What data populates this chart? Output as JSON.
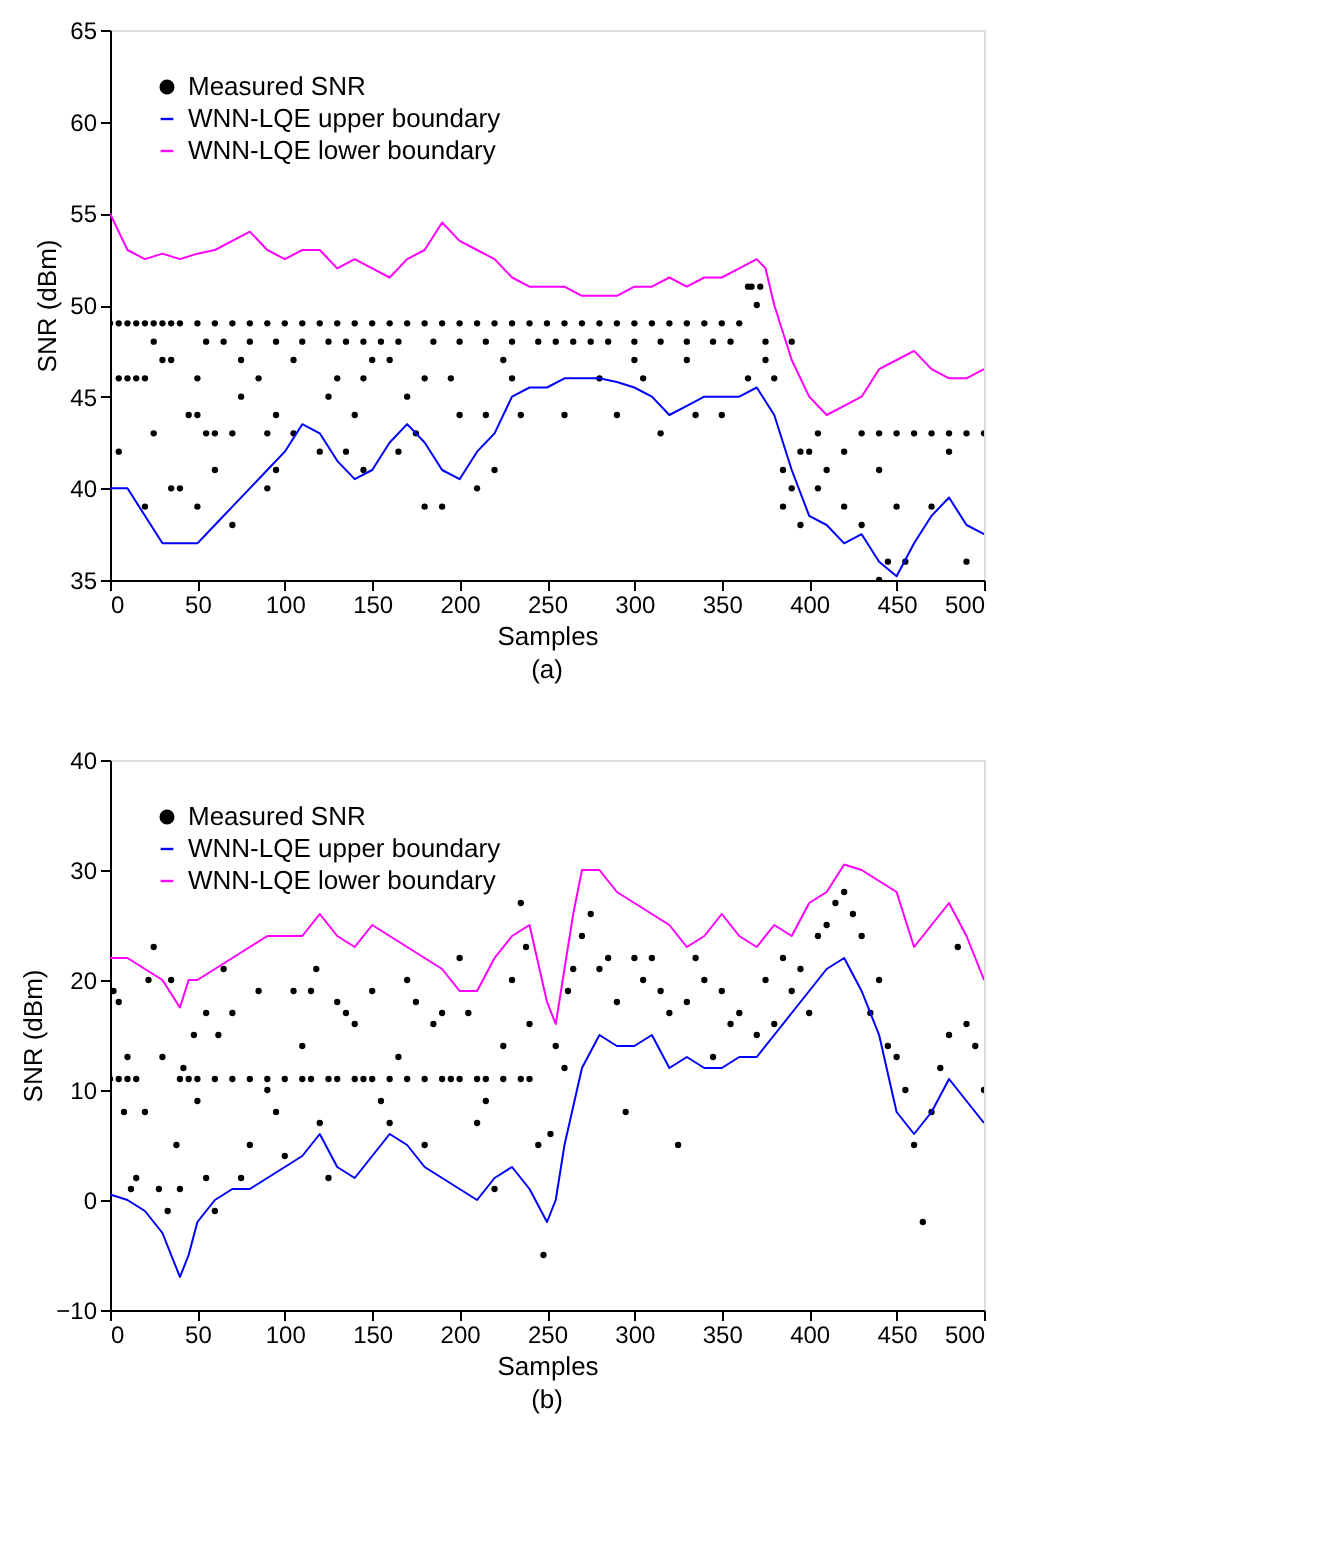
{
  "chart_data": [
    {
      "type": "line",
      "xlabel": "Samples",
      "ylabel": "SNR (dBm)",
      "annotations": [
        "(a)"
      ],
      "xlim": [
        0,
        500
      ],
      "xticks": [
        0,
        50,
        100,
        150,
        200,
        250,
        300,
        350,
        400,
        450,
        500
      ],
      "ylim": [
        35,
        65
      ],
      "yticks": [
        35,
        40,
        45,
        50,
        55,
        60,
        65
      ],
      "grid": false,
      "legend": "top left",
      "series": [
        {
          "name": "Measured SNR",
          "type": "scatter",
          "marker": "circle",
          "color": "#000000",
          "x": [
            0,
            5,
            10,
            15,
            20,
            25,
            30,
            35,
            40,
            50,
            60,
            70,
            80,
            90,
            100,
            110,
            120,
            130,
            140,
            150,
            160,
            170,
            180,
            190,
            200,
            210,
            220,
            230,
            240,
            250,
            260,
            270,
            280,
            290,
            300,
            310,
            320,
            330,
            340,
            350,
            360,
            365,
            367,
            370,
            372,
            25,
            55,
            65,
            80,
            95,
            110,
            125,
            135,
            145,
            155,
            165,
            185,
            200,
            215,
            230,
            245,
            255,
            265,
            275,
            285,
            300,
            315,
            330,
            345,
            355,
            375,
            390,
            30,
            35,
            75,
            105,
            150,
            160,
            225,
            300,
            330,
            375,
            5,
            10,
            15,
            20,
            50,
            85,
            130,
            145,
            180,
            195,
            230,
            280,
            305,
            365,
            380,
            75,
            125,
            170,
            45,
            50,
            95,
            140,
            200,
            215,
            235,
            260,
            290,
            335,
            350,
            25,
            55,
            60,
            70,
            90,
            105,
            175,
            315,
            405,
            430,
            440,
            450,
            460,
            470,
            480,
            490,
            500,
            5,
            120,
            135,
            165,
            395,
            400,
            420,
            480,
            60,
            95,
            145,
            220,
            385,
            410,
            440,
            35,
            40,
            90,
            210,
            390,
            405,
            20,
            50,
            180,
            190,
            385,
            420,
            450,
            470,
            70,
            395,
            430,
            445,
            455,
            490,
            440
          ],
          "values": [
            49,
            49,
            49,
            49,
            49,
            49,
            49,
            49,
            49,
            49,
            49,
            49,
            49,
            49,
            49,
            49,
            49,
            49,
            49,
            49,
            49,
            49,
            49,
            49,
            49,
            49,
            49,
            49,
            49,
            49,
            49,
            49,
            49,
            49,
            49,
            49,
            49,
            49,
            49,
            49,
            49,
            51,
            51,
            50,
            51,
            48,
            48,
            48,
            48,
            48,
            48,
            48,
            48,
            48,
            48,
            48,
            48,
            48,
            48,
            48,
            48,
            48,
            48,
            48,
            48,
            48,
            48,
            48,
            48,
            48,
            48,
            48,
            47,
            47,
            47,
            47,
            47,
            47,
            47,
            47,
            47,
            47,
            46,
            46,
            46,
            46,
            46,
            46,
            46,
            46,
            46,
            46,
            46,
            46,
            46,
            46,
            46,
            45,
            45,
            45,
            44,
            44,
            44,
            44,
            44,
            44,
            44,
            44,
            44,
            44,
            44,
            43,
            43,
            43,
            43,
            43,
            43,
            43,
            43,
            43,
            43,
            43,
            43,
            43,
            43,
            43,
            43,
            43,
            42,
            42,
            42,
            42,
            42,
            42,
            42,
            42,
            41,
            41,
            41,
            41,
            41,
            41,
            41,
            40,
            40,
            40,
            40,
            40,
            40,
            39,
            39,
            39,
            39,
            39,
            39,
            39,
            39,
            38,
            38,
            38,
            36,
            36,
            36,
            35
          ]
        },
        {
          "name": "WNN-LQE upper boundary",
          "color": "#0000ff",
          "x": [
            0,
            10,
            20,
            30,
            40,
            50,
            60,
            70,
            80,
            90,
            100,
            110,
            120,
            130,
            140,
            150,
            160,
            170,
            180,
            190,
            200,
            210,
            220,
            230,
            240,
            250,
            260,
            270,
            280,
            290,
            300,
            310,
            320,
            330,
            340,
            350,
            360,
            370,
            380,
            390,
            400,
            410,
            420,
            430,
            440,
            450,
            460,
            470,
            480,
            490,
            500
          ],
          "values": [
            40,
            40,
            38.5,
            37,
            37,
            37,
            38,
            39,
            40,
            41,
            42,
            43.5,
            43,
            41.5,
            40.5,
            41,
            42.5,
            43.5,
            42.5,
            41,
            40.5,
            42,
            43,
            45,
            45.5,
            45.5,
            46,
            46,
            46,
            45.8,
            45.5,
            45,
            44,
            44.5,
            45,
            45,
            45,
            45.5,
            44,
            41,
            38.5,
            38,
            37,
            37.5,
            36,
            35.2,
            37,
            38.5,
            39.5,
            38,
            37.5
          ]
        },
        {
          "name": "WNN-LQE lower boundary",
          "color": "#ff00ff",
          "x": [
            0,
            10,
            20,
            30,
            40,
            50,
            60,
            70,
            80,
            90,
            100,
            110,
            120,
            130,
            140,
            150,
            160,
            170,
            180,
            190,
            200,
            210,
            220,
            230,
            240,
            250,
            260,
            270,
            280,
            290,
            300,
            310,
            320,
            330,
            340,
            350,
            360,
            370,
            375,
            380,
            390,
            400,
            410,
            420,
            430,
            440,
            450,
            460,
            470,
            480,
            490,
            500
          ],
          "values": [
            55,
            53,
            52.5,
            52.8,
            52.5,
            52.8,
            53,
            53.5,
            54,
            53,
            52.5,
            53,
            53,
            52,
            52.5,
            52,
            51.5,
            52.5,
            53,
            54.5,
            53.5,
            53,
            52.5,
            51.5,
            51,
            51,
            51,
            50.5,
            50.5,
            50.5,
            51,
            51,
            51.5,
            51,
            51.5,
            51.5,
            52,
            52.5,
            52,
            50,
            47,
            45,
            44,
            44.5,
            45,
            46.5,
            47,
            47.5,
            46.5,
            46,
            46,
            46.5
          ]
        }
      ]
    },
    {
      "type": "line",
      "xlabel": "Samples",
      "ylabel": "SNR (dBm)",
      "annotations": [
        "(b)"
      ],
      "xlim": [
        0,
        500
      ],
      "xticks": [
        0,
        50,
        100,
        150,
        200,
        250,
        300,
        350,
        400,
        450,
        500
      ],
      "ylim": [
        -10,
        40
      ],
      "yticks": [
        -10,
        0,
        10,
        20,
        30,
        40
      ],
      "grid": false,
      "legend": "top left",
      "series": [
        {
          "name": "Measured SNR",
          "type": "scatter",
          "marker": "circle",
          "color": "#000000",
          "x": [
            0,
            5,
            10,
            15,
            40,
            45,
            50,
            60,
            70,
            80,
            90,
            100,
            110,
            115,
            125,
            130,
            140,
            145,
            150,
            160,
            170,
            180,
            190,
            200,
            210,
            215,
            225,
            235,
            240,
            2,
            5,
            8,
            10,
            12,
            15,
            20,
            22,
            25,
            28,
            30,
            33,
            35,
            38,
            40,
            42,
            48,
            50,
            55,
            55,
            60,
            62,
            65,
            70,
            75,
            80,
            85,
            90,
            95,
            100,
            105,
            110,
            115,
            118,
            120,
            125,
            130,
            135,
            140,
            150,
            155,
            160,
            165,
            170,
            175,
            180,
            185,
            190,
            195,
            200,
            205,
            210,
            215,
            220,
            225,
            230,
            235,
            238,
            240,
            245,
            248,
            252,
            255,
            260,
            262,
            265,
            270,
            275,
            280,
            285,
            290,
            295,
            300,
            305,
            310,
            315,
            320,
            325,
            330,
            335,
            340,
            345,
            350,
            355,
            360,
            370,
            375,
            380,
            385,
            390,
            395,
            400,
            405,
            410,
            415,
            420,
            425,
            430,
            435,
            440,
            445,
            450,
            455,
            460,
            465,
            470,
            475,
            480,
            485,
            490,
            495,
            500
          ],
          "values": [
            11,
            11,
            11,
            11,
            11,
            11,
            11,
            11,
            11,
            11,
            11,
            11,
            11,
            11,
            11,
            11,
            11,
            11,
            11,
            11,
            11,
            11,
            11,
            11,
            11,
            11,
            11,
            11,
            11,
            19,
            18,
            8,
            13,
            1,
            2,
            8,
            20,
            23,
            1,
            13,
            -1,
            20,
            5,
            1,
            12,
            15,
            9,
            2,
            17,
            -1,
            15,
            21,
            17,
            2,
            5,
            19,
            10,
            8,
            4,
            19,
            14,
            19,
            21,
            7,
            2,
            18,
            17,
            16,
            19,
            9,
            7,
            13,
            20,
            18,
            5,
            16,
            17,
            11,
            22,
            17,
            7,
            9,
            1,
            14,
            20,
            27,
            23,
            16,
            5,
            -5,
            6,
            14,
            12,
            19,
            21,
            24,
            26,
            21,
            22,
            18,
            8,
            22,
            20,
            22,
            19,
            17,
            5,
            18,
            22,
            20,
            13,
            19,
            16,
            17,
            15,
            20,
            16,
            22,
            19,
            21,
            17,
            24,
            25,
            27,
            28,
            26,
            24,
            17,
            20,
            14,
            13,
            10,
            5,
            -2,
            8,
            12,
            15,
            23,
            16,
            14,
            10
          ]
        },
        {
          "name": "WNN-LQE upper boundary",
          "color": "#0000ff",
          "x": [
            0,
            10,
            20,
            30,
            40,
            45,
            50,
            60,
            70,
            80,
            90,
            100,
            110,
            120,
            130,
            140,
            150,
            160,
            170,
            180,
            190,
            200,
            210,
            220,
            230,
            240,
            250,
            255,
            260,
            270,
            280,
            290,
            300,
            310,
            320,
            330,
            340,
            350,
            360,
            370,
            380,
            390,
            400,
            410,
            420,
            430,
            440,
            450,
            460,
            470,
            480,
            490,
            500
          ],
          "values": [
            0.5,
            0,
            -1,
            -3,
            -7,
            -5,
            -2,
            0,
            1,
            1,
            2,
            3,
            4,
            6,
            3,
            2,
            4,
            6,
            5,
            3,
            2,
            1,
            0,
            2,
            3,
            1,
            -2,
            0,
            5,
            12,
            15,
            14,
            14,
            15,
            12,
            13,
            12,
            12,
            13,
            13,
            15,
            17,
            19,
            21,
            22,
            19,
            15,
            8,
            6,
            8,
            11,
            9,
            7
          ]
        },
        {
          "name": "WNN-LQE lower boundary",
          "color": "#ff00ff",
          "x": [
            0,
            10,
            20,
            30,
            40,
            45,
            50,
            60,
            70,
            80,
            90,
            100,
            110,
            120,
            130,
            140,
            150,
            160,
            170,
            180,
            190,
            200,
            210,
            220,
            230,
            240,
            250,
            255,
            265,
            270,
            280,
            290,
            300,
            310,
            320,
            330,
            340,
            350,
            360,
            370,
            380,
            390,
            400,
            410,
            420,
            430,
            440,
            450,
            460,
            470,
            480,
            490,
            500
          ],
          "values": [
            22,
            22,
            21,
            20,
            17.5,
            20,
            20,
            21,
            22,
            23,
            24,
            24,
            24,
            26,
            24,
            23,
            25,
            24,
            23,
            22,
            21,
            19,
            19,
            22,
            24,
            25,
            18,
            16,
            26,
            30,
            30,
            28,
            27,
            26,
            25,
            23,
            24,
            26,
            24,
            23,
            25,
            24,
            27,
            28,
            30.5,
            30,
            29,
            28,
            23,
            25,
            27,
            24,
            20
          ]
        }
      ]
    }
  ]
}
